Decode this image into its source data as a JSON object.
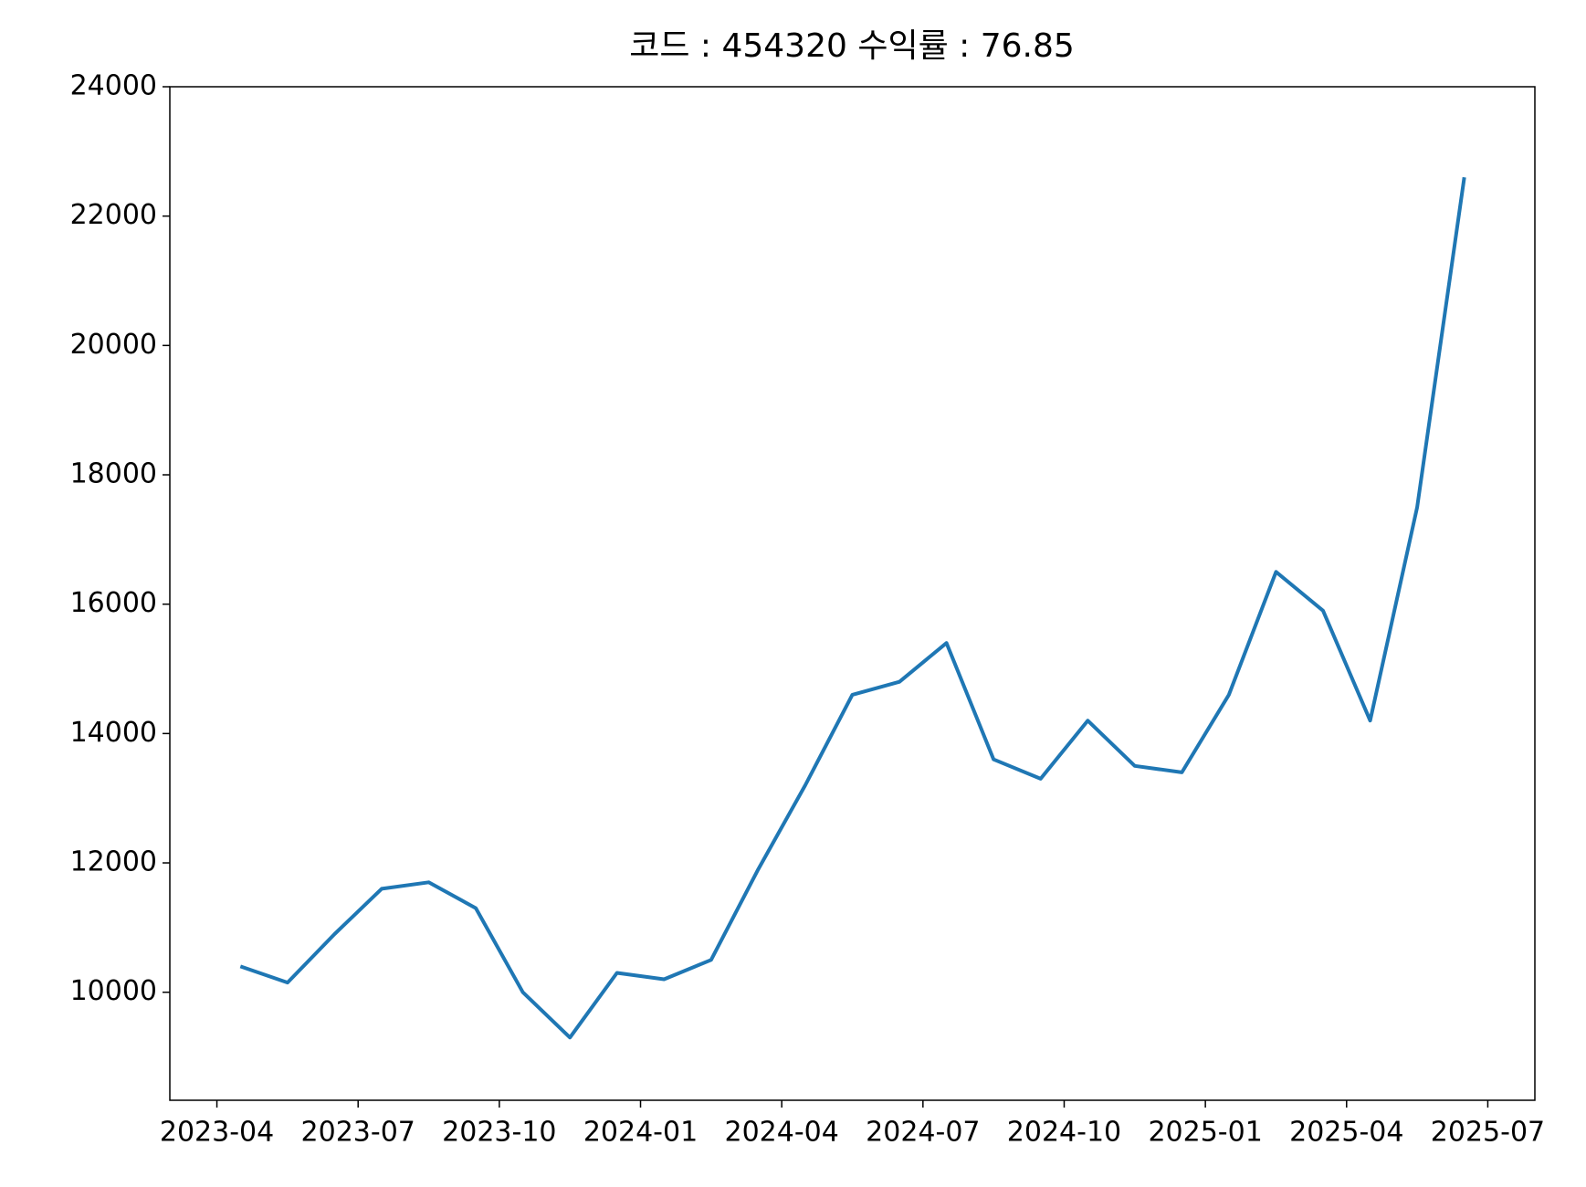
{
  "chart_data": {
    "type": "line",
    "title": "코드 : 454320 수익률 : 76.85",
    "x": [
      "2023-04",
      "2023-05",
      "2023-06",
      "2023-07",
      "2023-08",
      "2023-09",
      "2023-10",
      "2023-11",
      "2023-12",
      "2024-01",
      "2024-02",
      "2024-03",
      "2024-04",
      "2024-05",
      "2024-06",
      "2024-07",
      "2024-08",
      "2024-09",
      "2024-10",
      "2024-11",
      "2024-12",
      "2025-01",
      "2025-02",
      "2025-03",
      "2025-04",
      "2025-05",
      "2025-06"
    ],
    "series": [
      {
        "color": "#1f77b4",
        "values": [
          10400,
          10150,
          10900,
          11600,
          11700,
          11300,
          10000,
          9300,
          10300,
          10200,
          10500,
          11900,
          13200,
          14600,
          14800,
          15400,
          13600,
          13300,
          14200,
          13500,
          13400,
          14600,
          16500,
          15900,
          14200,
          17500,
          22600
        ]
      }
    ],
    "xlim": [
      "2023-03",
      "2025-08"
    ],
    "xticks": [
      "2023-04",
      "2023-07",
      "2023-10",
      "2024-01",
      "2024-04",
      "2024-07",
      "2024-10",
      "2025-01",
      "2025-04",
      "2025-07"
    ],
    "ylim": [
      8330,
      24000
    ],
    "yticks": [
      10000,
      12000,
      14000,
      16000,
      18000,
      20000,
      22000,
      24000
    ]
  }
}
